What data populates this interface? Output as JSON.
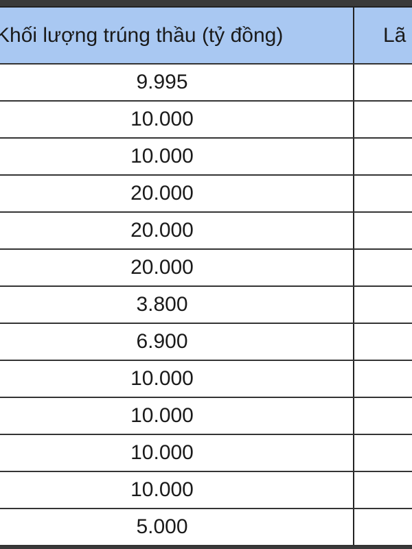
{
  "table": {
    "headers": [
      "Khối lượng trúng thầu (tỷ đồng)",
      "Lã"
    ],
    "rows": [
      "9.995",
      "10.000",
      "10.000",
      "20.000",
      "20.000",
      "20.000",
      "3.800",
      "6.900",
      "10.000",
      "10.000",
      "10.000",
      "10.000",
      "5.000"
    ],
    "colors": {
      "header_bg": "#a9c8f2",
      "frame": "#3a3a3a"
    }
  }
}
